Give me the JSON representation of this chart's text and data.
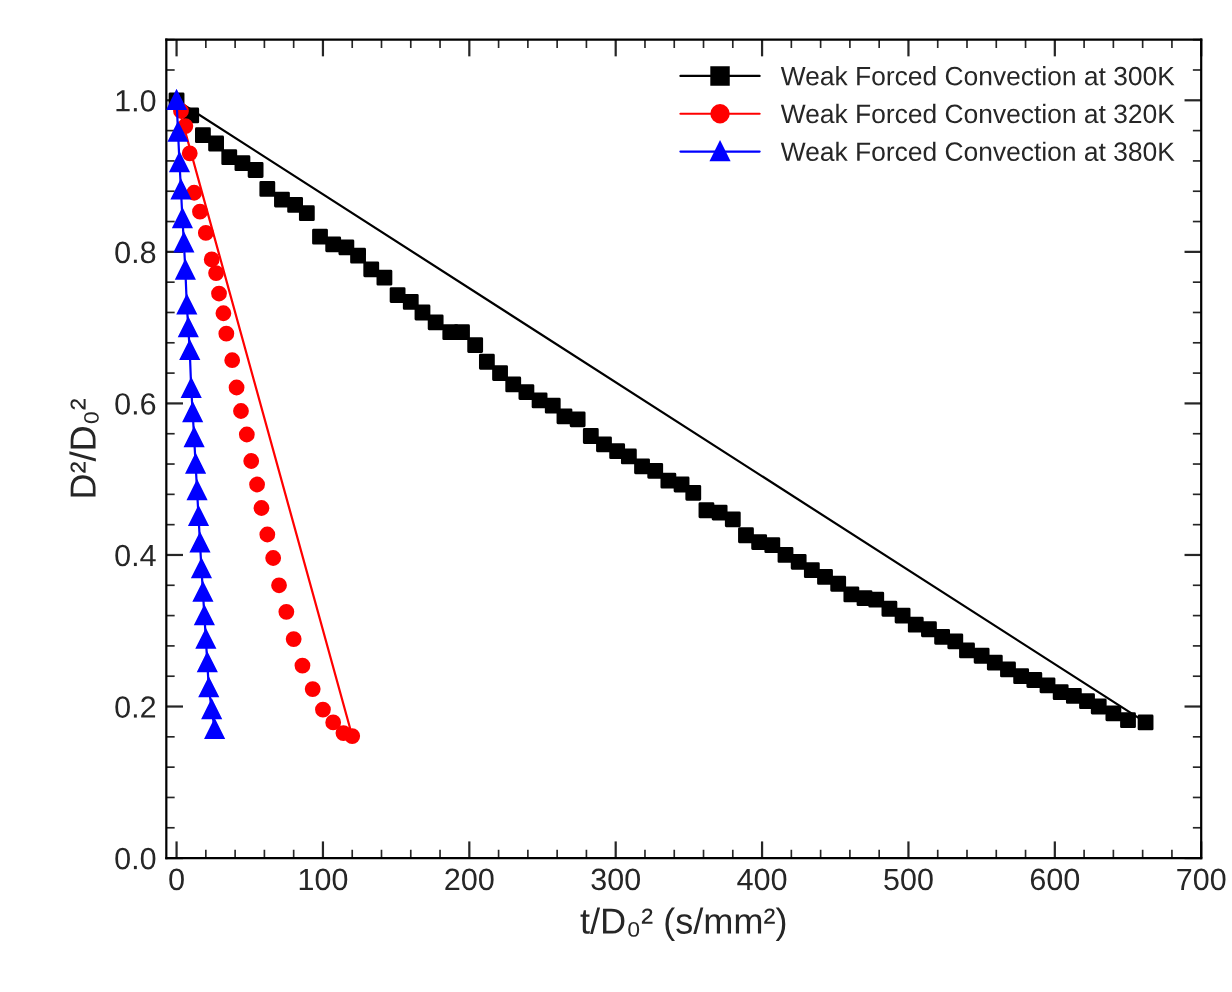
{
  "chart_data": {
    "type": "scatter",
    "xlabel": "t/D₀² (s/mm²)",
    "ylabel": "D²/D₀²",
    "xlim": [
      -7,
      700
    ],
    "ylim": [
      0,
      1.08
    ],
    "xticks": [
      0,
      100,
      200,
      300,
      400,
      500,
      600,
      700
    ],
    "yticks": [
      {
        "value": 0,
        "label": "0.0"
      },
      {
        "value": 0.2,
        "label": "0.2"
      },
      {
        "value": 0.4,
        "label": "0.4"
      },
      {
        "value": 0.6,
        "label": "0.6"
      },
      {
        "value": 0.8,
        "label": "0.8"
      },
      {
        "value": 1.0,
        "label": "1.0"
      }
    ],
    "grid": false,
    "legend": "top right",
    "series": [
      {
        "name": "Weak Forced Convection at 300K",
        "marker": "square",
        "color": "#000000",
        "x": [
          0,
          10,
          18,
          27,
          36,
          45,
          54,
          62,
          72,
          81,
          89,
          98,
          107,
          116,
          124,
          133,
          142,
          151,
          160,
          168,
          177,
          187,
          195,
          204,
          212,
          221,
          230,
          239,
          248,
          257,
          265,
          274,
          283,
          292,
          301,
          309,
          318,
          327,
          336,
          345,
          353,
          362,
          371,
          380,
          389,
          398,
          407,
          416,
          425,
          434,
          443,
          452,
          461,
          470,
          478,
          487,
          496,
          505,
          514,
          523,
          532,
          540,
          550,
          559,
          568,
          577,
          586,
          595,
          604,
          613,
          622,
          630,
          640,
          650,
          662
        ],
        "values": [
          1.0,
          0.98,
          0.954,
          0.943,
          0.925,
          0.917,
          0.908,
          0.883,
          0.869,
          0.862,
          0.851,
          0.82,
          0.81,
          0.806,
          0.795,
          0.777,
          0.766,
          0.743,
          0.734,
          0.72,
          0.707,
          0.694,
          0.694,
          0.677,
          0.655,
          0.64,
          0.625,
          0.615,
          0.604,
          0.597,
          0.583,
          0.579,
          0.557,
          0.546,
          0.537,
          0.53,
          0.517,
          0.511,
          0.498,
          0.493,
          0.482,
          0.459,
          0.456,
          0.447,
          0.426,
          0.417,
          0.413,
          0.4,
          0.391,
          0.38,
          0.371,
          0.362,
          0.348,
          0.343,
          0.341,
          0.329,
          0.32,
          0.308,
          0.302,
          0.292,
          0.286,
          0.274,
          0.267,
          0.258,
          0.249,
          0.24,
          0.235,
          0.228,
          0.219,
          0.214,
          0.207,
          0.2,
          0.191,
          0.182,
          0.179
        ]
      },
      {
        "type": "line",
        "marker": "none",
        "color": "#000000",
        "x": [
          0,
          662
        ],
        "values": [
          1.0,
          0.179
        ]
      },
      {
        "name": "Weak Forced Convection at 320K",
        "marker": "circle",
        "color": "#ff0000",
        "x": [
          3,
          6,
          9,
          12,
          16,
          20,
          24,
          27,
          29,
          32,
          34,
          38,
          41,
          44,
          48,
          51,
          55,
          58,
          62,
          66,
          70,
          75,
          80,
          86,
          93,
          100,
          107,
          114,
          120
        ],
        "values": [
          0.986,
          0.966,
          0.93,
          0.878,
          0.853,
          0.825,
          0.79,
          0.772,
          0.745,
          0.719,
          0.692,
          0.657,
          0.621,
          0.59,
          0.559,
          0.524,
          0.493,
          0.462,
          0.427,
          0.396,
          0.36,
          0.325,
          0.289,
          0.254,
          0.223,
          0.196,
          0.179,
          0.165,
          0.161
        ]
      },
      {
        "type": "line",
        "marker": "none",
        "color": "#ff0000",
        "x": [
          0,
          120
        ],
        "values": [
          1.0,
          0.161
        ]
      },
      {
        "name": "Weak Forced Convection at 380K",
        "type": "line",
        "marker": "triangle",
        "color": "#0000ff",
        "x": [
          0,
          1,
          2,
          3,
          4,
          5,
          6,
          7,
          8,
          9,
          10,
          11,
          12,
          13,
          14,
          15,
          16,
          17,
          18,
          19,
          20,
          21,
          22,
          24,
          26
        ],
        "values": [
          1.0,
          0.958,
          0.918,
          0.882,
          0.844,
          0.812,
          0.776,
          0.73,
          0.7,
          0.67,
          0.62,
          0.588,
          0.555,
          0.52,
          0.485,
          0.451,
          0.416,
          0.382,
          0.351,
          0.32,
          0.289,
          0.258,
          0.225,
          0.196,
          0.17
        ]
      }
    ]
  }
}
